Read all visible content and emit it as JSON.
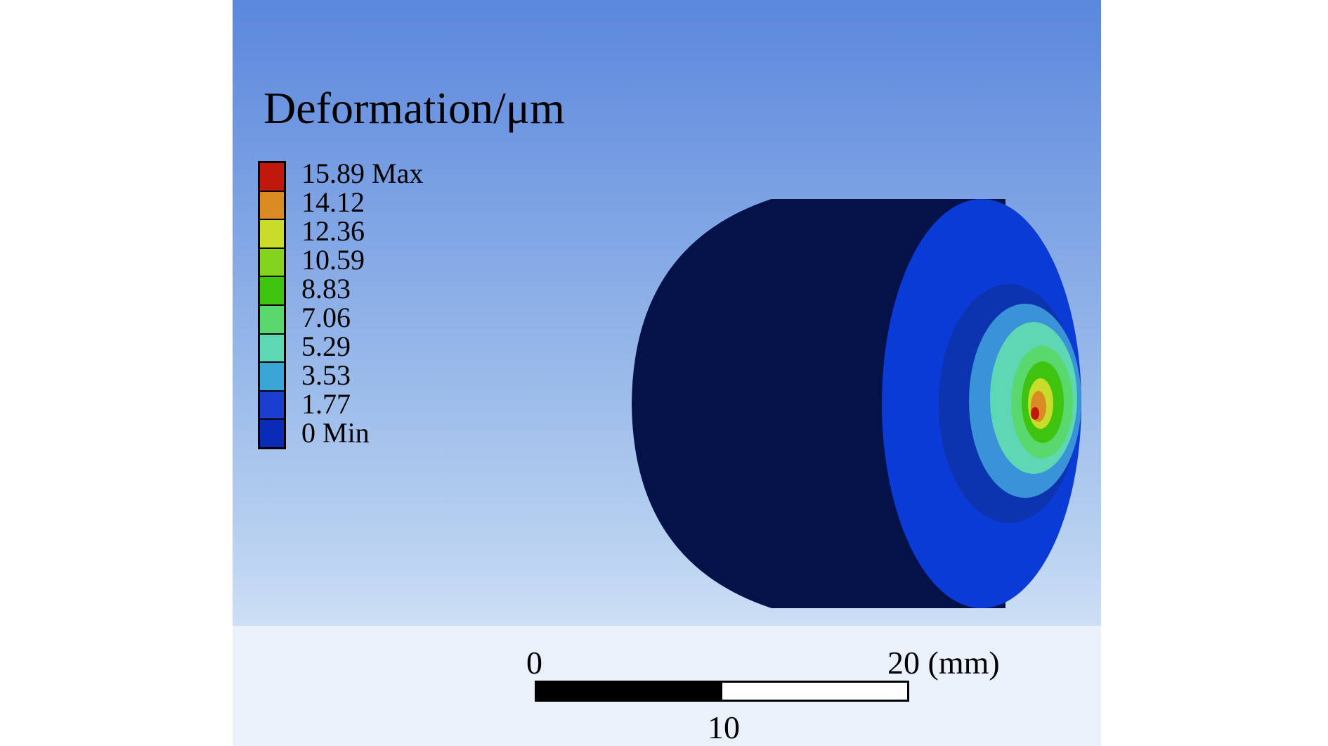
{
  "legend": {
    "title": "Deformation/μm",
    "entries": [
      {
        "label": "15.89 Max",
        "color": "#c0180c"
      },
      {
        "label": "14.12",
        "color": "#d98a22"
      },
      {
        "label": "12.36",
        "color": "#c9dc2a"
      },
      {
        "label": "10.59",
        "color": "#84d41e"
      },
      {
        "label": "8.83",
        "color": "#3ec40e"
      },
      {
        "label": "7.06",
        "color": "#5ad86e"
      },
      {
        "label": "5.29",
        "color": "#5ed7b4"
      },
      {
        "label": "3.53",
        "color": "#3aa6d6"
      },
      {
        "label": "1.77",
        "color": "#1a3fd0"
      },
      {
        "label": "0 Min",
        "color": "#0a2bb8"
      }
    ]
  },
  "scale_bar": {
    "start_label": "0",
    "end_label": "20 (mm)",
    "mid_label": "10"
  },
  "colors": {
    "background_top": "#5b87dd",
    "background_bottom": "#e9f1fb",
    "model_side": "#05124a",
    "model_face": "#0a3bd6"
  }
}
